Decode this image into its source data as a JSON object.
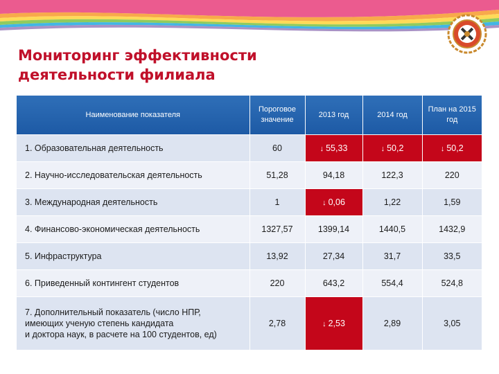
{
  "title": {
    "line1": "Мониторинг эффективности",
    "line2": "деятельности филиала"
  },
  "logo": {
    "icon": "university-emblem-icon"
  },
  "decoration": {
    "stripes": [
      "#e83e7b",
      "#f79a2c",
      "#ffd33b",
      "#7cc242",
      "#20a9e1",
      "#6e4aa0"
    ]
  },
  "table": {
    "columns": [
      "Наименование показателя",
      "Пороговое значение",
      "2013 год",
      "2014 год",
      "План на 2015 год"
    ],
    "rows": [
      {
        "name": "1. Образовательная деятельность",
        "threshold": "60",
        "y2013": "55,33",
        "y2014": "50,2",
        "plan2015": "50,2"
      },
      {
        "name": "2. Научно-исследовательская деятельность",
        "threshold": "51,28",
        "y2013": "94,18",
        "y2014": "122,3",
        "plan2015": "220"
      },
      {
        "name": "3. Международная деятельность",
        "threshold": "1",
        "y2013": "0,06",
        "y2014": "1,22",
        "plan2015": "1,59"
      },
      {
        "name": "4. Финансово-экономическая деятельность",
        "threshold": "1327,57",
        "y2013": "1399,14",
        "y2014": "1440,5",
        "plan2015": "1432,9"
      },
      {
        "name": "5. Инфраструктура",
        "threshold": "13,92",
        "y2013": "27,34",
        "y2014": "31,7",
        "plan2015": "33,5"
      },
      {
        "name": "6. Приведенный контингент студентов",
        "threshold": "220",
        "y2013": "643,2",
        "y2014": "554,4",
        "plan2015": "524,8"
      },
      {
        "name": "7. Дополнительный показатель (число НПР,\nимеющих ученую степень кандидата\nи доктора наук, в расчете на 100 студентов, ед)",
        "threshold": "2,78",
        "y2013": "2,53",
        "y2014": "2,89",
        "plan2015": "3,05"
      }
    ],
    "arrow_symbol": "↓",
    "highlight_color": "#c4061a"
  }
}
